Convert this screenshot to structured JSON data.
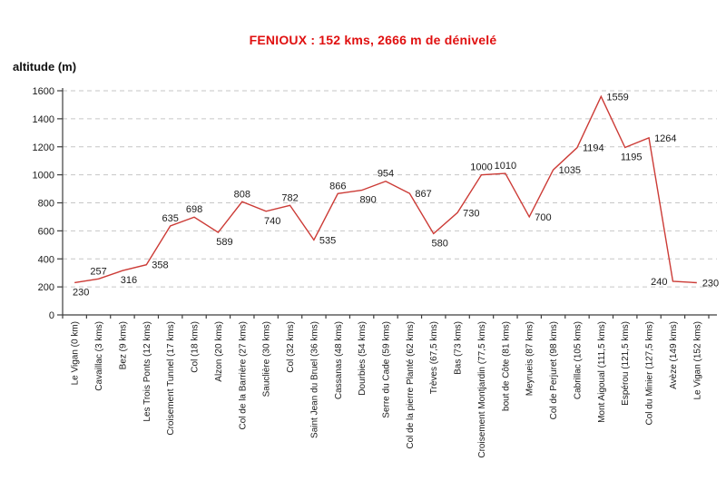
{
  "chart_data": {
    "type": "line",
    "title": "FENIOUX : 152 kms, 2666 m de dénivelé",
    "ylabel": "altitude (m)",
    "xlabel": "",
    "ylim": [
      0,
      1600
    ],
    "ytick_step": 200,
    "grid": "horizontal-dashed",
    "legend": "none",
    "categories": [
      "Le Vigan (0 km)",
      "Cavaillac (3 kms)",
      "Bez (9 kms)",
      "Les Trois Ponts (12 kms)",
      "Croisement Tunnel (17 kms)",
      "Col (18 kms)",
      "Alzon (20 kms)",
      "Col de la Barrière (27 kms)",
      "Sauclière (30 kms)",
      "Col (32 kms)",
      "Saint Jean du Bruel (36 kms)",
      "Cassanas (48 kms)",
      "Dourbies (54 kms)",
      "Serre du Cade (59 kms)",
      "Col de la pierre Planté (62 kms)",
      "Trèves (67,5 kms)",
      "Bas (73 kms)",
      "Croisement Montjardin (77,5 kms)",
      "bout de Côte (81 kms)",
      "Meyrueis (87 kms)",
      "Col de Perjuret (98 kms)",
      "Cabrillac (105 kms)",
      "Mont Aigoual (111,5 kms)",
      "Espérou (121,5 kms)",
      "Col du Minier (127,5 kms)",
      "Avèze (149 kms)",
      "Le Vigan (152 kms)"
    ],
    "series": [
      {
        "name": "altitude",
        "color": "#cc3b36",
        "values": [
          230,
          257,
          316,
          358,
          635,
          698,
          589,
          808,
          740,
          782,
          535,
          866,
          890,
          954,
          867,
          580,
          730,
          1000,
          1010,
          700,
          1035,
          1194,
          1559,
          1195,
          1264,
          240,
          230
        ]
      }
    ],
    "point_label_positions": [
      "below",
      "above",
      "below",
      "right",
      "above",
      "above",
      "below",
      "above",
      "below",
      "above",
      "right",
      "above",
      "below",
      "above",
      "right",
      "below",
      "right",
      "above",
      "above",
      "right",
      "right",
      "right",
      "right",
      "below",
      "right",
      "left",
      "right"
    ],
    "colors": {
      "title": "#e01010",
      "line": "#cc3b36",
      "grid": "#c6c6c6",
      "axis": "#3d3d3d",
      "text": "#1a1a1a"
    }
  }
}
